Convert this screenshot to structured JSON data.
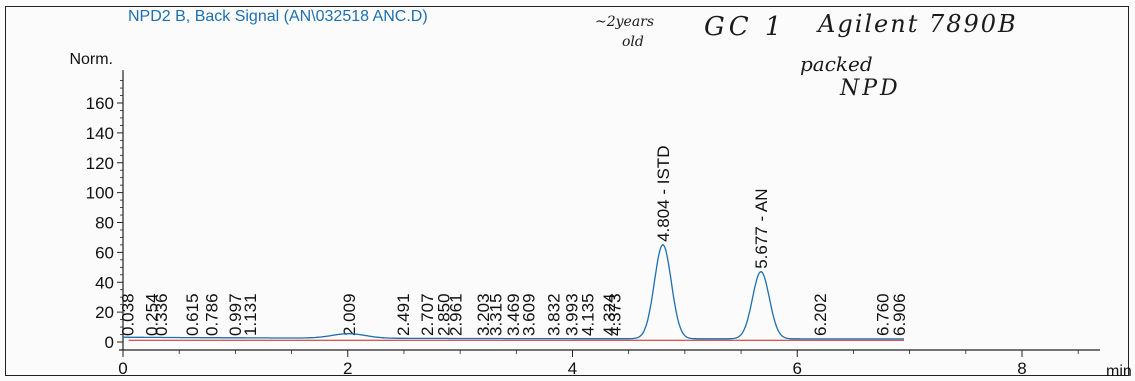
{
  "chart_data": {
    "type": "line",
    "title": "NPD2 B, Back Signal (AN\\032518  ANC.D)",
    "xlabel": "min",
    "ylabel": "Norm.",
    "xlim": [
      0,
      9
    ],
    "ylim": [
      0,
      170
    ],
    "x_ticks": [
      0,
      2,
      4,
      6,
      8
    ],
    "y_ticks": [
      0,
      20,
      40,
      60,
      80,
      100,
      120,
      140,
      160
    ],
    "grid": false,
    "series_color": "#1d6fb0",
    "baseline_color": "#cc2222",
    "peaks": [
      {
        "rt": 4.804,
        "height": 63,
        "label": "4.804 - ISTD"
      },
      {
        "rt": 5.677,
        "height": 45,
        "label": "5.677 - AN"
      }
    ],
    "small_peaks": [
      {
        "rt": 2.009,
        "height": 3
      }
    ],
    "annotations": [
      {
        "label": "0.038",
        "rt": 0.038
      },
      {
        "label": "0.254",
        "rt": 0.254
      },
      {
        "label": "0.336",
        "rt": 0.336
      },
      {
        "label": "0.615",
        "rt": 0.615
      },
      {
        "label": "0.786",
        "rt": 0.786
      },
      {
        "label": "0.997",
        "rt": 0.997
      },
      {
        "label": "1.131",
        "rt": 1.131
      },
      {
        "label": "2.009",
        "rt": 2.009
      },
      {
        "label": "2.491",
        "rt": 2.491
      },
      {
        "label": "2.707",
        "rt": 2.707
      },
      {
        "label": "2.850",
        "rt": 2.85
      },
      {
        "label": "2.961",
        "rt": 2.961
      },
      {
        "label": "3.203",
        "rt": 3.203
      },
      {
        "label": "3.315",
        "rt": 3.315
      },
      {
        "label": "3.469",
        "rt": 3.469
      },
      {
        "label": "3.609",
        "rt": 3.609
      },
      {
        "label": "3.832",
        "rt": 3.832
      },
      {
        "label": "3.993",
        "rt": 3.993
      },
      {
        "label": "4.135",
        "rt": 4.135
      },
      {
        "label": "4.324",
        "rt": 4.324
      },
      {
        "label": "4.373",
        "rt": 4.373
      },
      {
        "label": "6.202",
        "rt": 6.202
      },
      {
        "label": "6.760",
        "rt": 6.76
      },
      {
        "label": "6.906",
        "rt": 6.906
      }
    ]
  },
  "handwritten": {
    "line1": "~2years",
    "line2": "old",
    "gc": "GC 1",
    "instrument": "Agilent 7890B",
    "packed": "packed",
    "detector": "NPD"
  }
}
